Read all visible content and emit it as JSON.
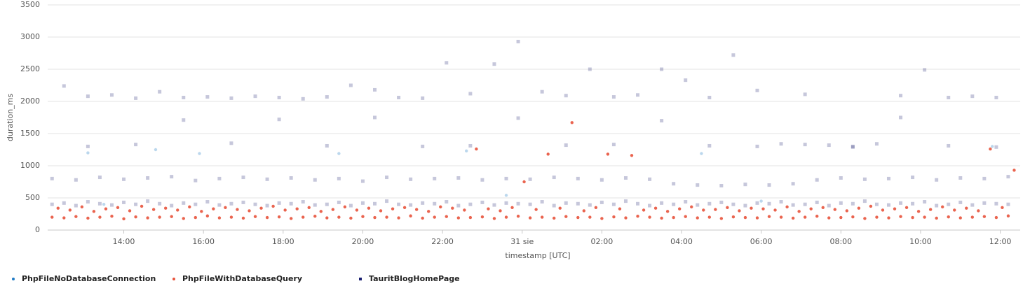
{
  "chart_data": {
    "type": "scatter",
    "x_label": "timestamp [UTC]",
    "y_label": "duration_ms",
    "xlim": [
      12.09,
      36.5
    ],
    "ylim": [
      0,
      3500
    ],
    "xticks": [
      {
        "value": 14,
        "label": "14:00"
      },
      {
        "value": 16,
        "label": "16:00"
      },
      {
        "value": 18,
        "label": "18:00"
      },
      {
        "value": 20,
        "label": "20:00"
      },
      {
        "value": 22,
        "label": "22:00"
      },
      {
        "value": 24,
        "label": "31 sie"
      },
      {
        "value": 26,
        "label": "02:00"
      },
      {
        "value": 28,
        "label": "04:00"
      },
      {
        "value": 30,
        "label": "06:00"
      },
      {
        "value": 32,
        "label": "08:00"
      },
      {
        "value": 34,
        "label": "10:00"
      },
      {
        "value": 36,
        "label": "12:00"
      }
    ],
    "yticks": [
      0,
      500,
      1000,
      1500,
      2000,
      2500,
      3000,
      3500
    ],
    "grid": true,
    "legend": "bottom-left",
    "series": [
      {
        "name": "PhpFileNoDatabaseConnection",
        "color": "#1f7ac4",
        "opacity": 0.3,
        "marker": "circle",
        "x": [
          13.1,
          13.5,
          14.8,
          15.9,
          19.4,
          22.6,
          23.6,
          28.5,
          30.0,
          35.8
        ],
        "values": [
          1200,
          400,
          1250,
          1190,
          1190,
          1230,
          540,
          1190,
          450,
          1300
        ]
      },
      {
        "name": "PhpFileWithDatabaseQuery",
        "color": "#e8533c",
        "opacity": 0.9,
        "marker": "circle",
        "x": [
          12.2,
          12.5,
          12.8,
          13.1,
          13.4,
          13.7,
          14.0,
          14.3,
          14.6,
          14.9,
          15.2,
          15.5,
          15.8,
          16.1,
          16.4,
          16.7,
          17.0,
          17.3,
          17.6,
          17.9,
          18.2,
          18.5,
          18.8,
          19.1,
          19.4,
          19.7,
          20.0,
          20.3,
          20.6,
          20.9,
          21.2,
          21.5,
          21.8,
          22.1,
          22.4,
          22.7,
          23.0,
          23.3,
          23.6,
          23.9,
          24.2,
          24.5,
          24.8,
          25.1,
          25.4,
          25.7,
          26.0,
          26.3,
          26.6,
          26.9,
          27.2,
          27.5,
          27.8,
          28.1,
          28.4,
          28.7,
          29.0,
          29.3,
          29.6,
          29.9,
          30.2,
          30.5,
          30.8,
          31.1,
          31.4,
          31.7,
          32.0,
          32.3,
          32.6,
          32.9,
          33.2,
          33.5,
          33.8,
          34.1,
          34.4,
          34.7,
          35.0,
          35.3,
          35.6,
          35.9,
          36.2,
          12.35,
          12.65,
          12.95,
          13.25,
          13.55,
          13.85,
          14.15,
          14.45,
          14.75,
          15.05,
          15.35,
          15.65,
          15.95,
          16.25,
          16.55,
          16.85,
          17.15,
          17.45,
          17.75,
          18.05,
          18.35,
          18.65,
          18.95,
          19.25,
          19.55,
          19.85,
          20.15,
          20.45,
          20.75,
          21.05,
          21.35,
          21.65,
          21.95,
          22.25,
          22.55,
          22.85,
          23.15,
          23.45,
          23.75,
          24.05,
          24.35,
          24.65,
          24.95,
          25.25,
          25.55,
          25.85,
          26.15,
          26.45,
          26.75,
          27.05,
          27.35,
          27.65,
          27.95,
          28.25,
          28.55,
          28.85,
          29.15,
          29.45,
          29.75,
          30.05,
          30.35,
          30.65,
          30.95,
          31.25,
          31.55,
          31.85,
          32.15,
          32.45,
          32.75,
          33.05,
          33.35,
          33.65,
          33.95,
          34.25,
          34.55,
          34.85,
          35.15,
          35.45,
          35.75,
          36.05,
          36.35
        ],
        "values": [
          200,
          190,
          210,
          185,
          200,
          215,
          175,
          205,
          190,
          200,
          210,
          180,
          195,
          220,
          190,
          200,
          185,
          210,
          195,
          205,
          180,
          200,
          215,
          190,
          200,
          185,
          210,
          195,
          200,
          190,
          220,
          185,
          200,
          210,
          190,
          195,
          205,
          180,
          200,
          215,
          190,
          200,
          185,
          210,
          195,
          200,
          180,
          205,
          190,
          215,
          200,
          185,
          195,
          210,
          190,
          200,
          180,
          205,
          195,
          190,
          210,
          200,
          185,
          200,
          215,
          190,
          195,
          205,
          180,
          200,
          190,
          210,
          195,
          200,
          185,
          205,
          190,
          200,
          210,
          195,
          220,
          340,
          310,
          360,
          290,
          330,
          350,
          300,
          370,
          320,
          340,
          310,
          360,
          290,
          330,
          350,
          320,
          300,
          340,
          370,
          310,
          330,
          350,
          290,
          320,
          360,
          310,
          340,
          300,
          330,
          350,
          320,
          290,
          360,
          340,
          310,
          1260,
          330,
          300,
          350,
          750,
          320,
          1180,
          340,
          1670,
          300,
          350,
          1180,
          330,
          1160,
          310,
          340,
          290,
          330,
          360,
          310,
          320,
          350,
          300,
          340,
          330,
          310,
          360,
          290,
          330,
          350,
          320,
          300,
          340,
          370,
          310,
          330,
          350,
          290,
          320,
          360,
          310,
          340,
          300,
          1260,
          350,
          930
        ]
      },
      {
        "name": "TauritBlogHomePage",
        "color": "#1a1f71",
        "opacity": 0.25,
        "marker": "square",
        "x": [
          12.2,
          12.5,
          12.8,
          13.1,
          13.4,
          13.7,
          14.0,
          14.3,
          14.6,
          14.9,
          15.2,
          15.5,
          15.8,
          16.1,
          16.4,
          16.7,
          17.0,
          17.3,
          17.6,
          17.9,
          18.2,
          18.5,
          18.8,
          19.1,
          19.4,
          19.7,
          20.0,
          20.3,
          20.6,
          20.9,
          21.2,
          21.5,
          21.8,
          22.1,
          22.4,
          22.7,
          23.0,
          23.3,
          23.6,
          23.9,
          24.2,
          24.5,
          24.8,
          25.1,
          25.4,
          25.7,
          26.0,
          26.3,
          26.6,
          26.9,
          27.2,
          27.5,
          27.8,
          28.1,
          28.4,
          28.7,
          29.0,
          29.3,
          29.6,
          29.9,
          30.2,
          30.5,
          30.8,
          31.1,
          31.4,
          31.7,
          32.0,
          32.3,
          32.6,
          32.9,
          33.2,
          33.5,
          33.8,
          34.1,
          34.4,
          34.7,
          35.0,
          35.3,
          35.6,
          35.9,
          36.2,
          12.2,
          12.8,
          13.4,
          14.0,
          14.6,
          15.2,
          15.8,
          16.4,
          17.0,
          17.6,
          18.2,
          18.8,
          19.4,
          20.0,
          20.6,
          21.2,
          21.8,
          22.4,
          23.0,
          23.6,
          24.2,
          24.8,
          25.4,
          26.0,
          26.6,
          27.2,
          27.8,
          28.4,
          29.0,
          29.6,
          30.2,
          30.8,
          31.4,
          32.0,
          32.6,
          33.2,
          33.8,
          34.4,
          35.0,
          35.6,
          36.2,
          12.5,
          13.1,
          13.7,
          14.3,
          14.9,
          15.5,
          16.1,
          16.7,
          17.3,
          17.9,
          18.5,
          19.1,
          19.7,
          20.3,
          20.9,
          21.5,
          22.1,
          22.7,
          23.3,
          23.9,
          24.5,
          25.1,
          25.7,
          26.3,
          26.9,
          27.5,
          28.1,
          28.7,
          29.3,
          29.9,
          30.5,
          31.1,
          31.7,
          32.3,
          32.9,
          33.5,
          34.1,
          34.7,
          35.3,
          35.9,
          13.1,
          14.3,
          15.5,
          16.7,
          17.9,
          19.1,
          20.3,
          21.5,
          22.7,
          23.9,
          25.1,
          26.3,
          27.5,
          28.7,
          29.9,
          31.1,
          32.3,
          33.5,
          34.7,
          35.9
        ],
        "values": [
          400,
          420,
          380,
          440,
          410,
          390,
          430,
          400,
          450,
          410,
          380,
          420,
          400,
          440,
          390,
          410,
          430,
          400,
          380,
          420,
          410,
          440,
          390,
          400,
          430,
          380,
          420,
          410,
          450,
          400,
          390,
          420,
          410,
          440,
          380,
          400,
          430,
          390,
          420,
          410,
          400,
          440,
          380,
          420,
          410,
          390,
          430,
          400,
          450,
          410,
          380,
          420,
          400,
          440,
          390,
          410,
          430,
          400,
          380,
          420,
          410,
          440,
          390,
          400,
          430,
          380,
          420,
          410,
          450,
          400,
          390,
          420,
          410,
          440,
          380,
          400,
          430,
          390,
          420,
          410,
          400,
          800,
          780,
          820,
          790,
          810,
          830,
          770,
          800,
          820,
          790,
          810,
          780,
          800,
          760,
          820,
          790,
          800,
          810,
          780,
          800,
          790,
          820,
          800,
          780,
          810,
          790,
          720,
          700,
          690,
          710,
          700,
          720,
          780,
          810,
          790,
          800,
          820,
          780,
          810,
          800,
          830,
          2240,
          2080,
          2100,
          2050,
          2150,
          2060,
          2070,
          2050,
          2080,
          2060,
          2040,
          2070,
          2250,
          2180,
          2060,
          2050,
          2600,
          2120,
          2580,
          2930,
          2150,
          2090,
          2500,
          2070,
          2100,
          2500,
          2330,
          2060,
          2720,
          2170,
          1340,
          2110,
          1320,
          1290,
          1340,
          2090,
          2490,
          2060,
          2080,
          2060,
          1300,
          1330,
          1710,
          1350,
          1720,
          1310,
          1750,
          1300,
          1310,
          1740,
          1320,
          1330,
          1700,
          1310,
          1300,
          1330,
          1300,
          1750,
          1310,
          1290
        ]
      }
    ]
  }
}
